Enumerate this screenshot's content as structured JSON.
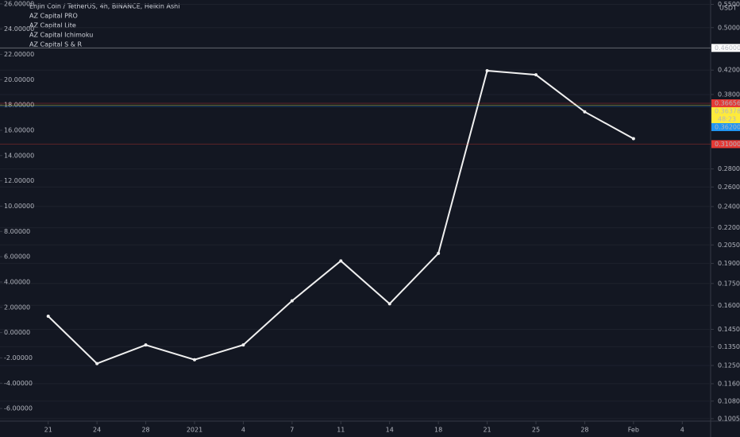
{
  "chart_data": {
    "type": "line",
    "log_scale": true,
    "grid": true,
    "title": "Enjin Coin / TetherUS, 4h, BINANCE, Heikin Ashi",
    "indicators": [
      "AZ Capital PRO",
      "AZ Capital Lite",
      "AZ Capital Ichimoku",
      "AZ Capital S & R"
    ],
    "currency": "USDT",
    "categories": [
      "21",
      "24",
      "28",
      "2021",
      "4",
      "7",
      "11",
      "14",
      "18",
      "21",
      "25",
      "28",
      "Feb",
      "4"
    ],
    "series": [
      {
        "name": "Enjin Coin / TetherUS",
        "color": "#f0f0f0",
        "values": [
          0.153,
          0.126,
          0.136,
          0.128,
          0.136,
          0.163,
          0.192,
          0.161,
          0.198,
          0.419,
          0.412,
          0.354,
          0.317,
          null
        ]
      }
    ],
    "ylim": [
      0.0995,
      0.56
    ],
    "yticks": [
      {
        "value": 0.1005,
        "label": "0.10050"
      },
      {
        "value": 0.108,
        "label": "0.10800"
      },
      {
        "value": 0.116,
        "label": "0.11600"
      },
      {
        "value": 0.125,
        "label": "0.12500"
      },
      {
        "value": 0.135,
        "label": "0.13500"
      },
      {
        "value": 0.145,
        "label": "0.14500"
      },
      {
        "value": 0.16,
        "label": "0.16000"
      },
      {
        "value": 0.175,
        "label": "0.17500"
      },
      {
        "value": 0.19,
        "label": "0.19000"
      },
      {
        "value": 0.205,
        "label": "0.20500"
      },
      {
        "value": 0.22,
        "label": "0.22000"
      },
      {
        "value": 0.24,
        "label": "0.24000"
      },
      {
        "value": 0.26,
        "label": "0.26000"
      },
      {
        "value": 0.28,
        "label": "0.28000"
      },
      {
        "value": 0.38,
        "label": "0.38000"
      },
      {
        "value": 0.42,
        "label": "0.42000"
      },
      {
        "value": 0.5,
        "label": "0.50000"
      },
      {
        "value": 0.55,
        "label": "0.55000"
      }
    ],
    "price_labels": [
      {
        "value": 0.46,
        "label": "0.46000",
        "color": "#ffffff"
      },
      {
        "value": 0.36656,
        "label": "0.36656",
        "color": "#e53935"
      },
      {
        "value": 0.36378,
        "label": "0.36378",
        "color": "#ffeb3b"
      },
      {
        "value": 0.362,
        "label": "0.36200",
        "color": "#2196f3"
      },
      {
        "value": 0.31,
        "label": "0.31000",
        "color": "#e53935"
      }
    ],
    "countdown": "48:23",
    "y2lim": [
      -7,
      26.3
    ],
    "y2ticks": [
      {
        "value": -6,
        "label": "-6.00000"
      },
      {
        "value": -4,
        "label": "-4.00000"
      },
      {
        "value": -2,
        "label": "-2.00000"
      },
      {
        "value": 0,
        "label": "0.00000"
      },
      {
        "value": 2,
        "label": "2.00000"
      },
      {
        "value": 4,
        "label": "4.00000"
      },
      {
        "value": 6,
        "label": "6.00000"
      },
      {
        "value": 8,
        "label": "8.00000"
      },
      {
        "value": 10,
        "label": "10.00000"
      },
      {
        "value": 12,
        "label": "12.00000"
      },
      {
        "value": 14,
        "label": "14.00000"
      },
      {
        "value": 16,
        "label": "16.00000"
      },
      {
        "value": 18,
        "label": "18.00000"
      },
      {
        "value": 20,
        "label": "20.00000"
      },
      {
        "value": 22,
        "label": "22.00000"
      },
      {
        "value": 24,
        "label": "24.00000"
      },
      {
        "value": 26,
        "label": "26.00000"
      }
    ]
  }
}
